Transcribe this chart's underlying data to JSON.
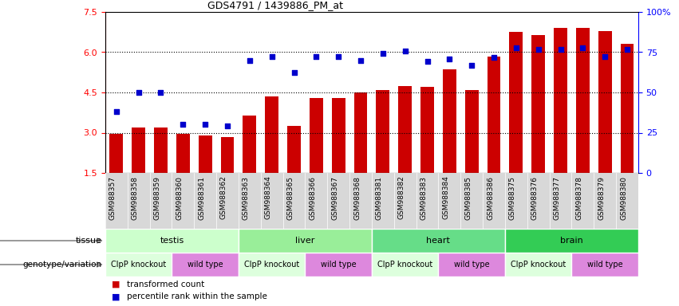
{
  "title": "GDS4791 / 1439886_PM_at",
  "samples": [
    "GSM988357",
    "GSM988358",
    "GSM988359",
    "GSM988360",
    "GSM988361",
    "GSM988362",
    "GSM988363",
    "GSM988364",
    "GSM988365",
    "GSM988366",
    "GSM988367",
    "GSM988368",
    "GSM988381",
    "GSM988382",
    "GSM988383",
    "GSM988384",
    "GSM988385",
    "GSM988386",
    "GSM988375",
    "GSM988376",
    "GSM988377",
    "GSM988378",
    "GSM988379",
    "GSM988380"
  ],
  "bar_values": [
    2.95,
    3.2,
    3.2,
    2.95,
    2.9,
    2.85,
    3.65,
    4.35,
    3.25,
    4.3,
    4.3,
    4.5,
    4.6,
    4.75,
    4.7,
    5.35,
    4.6,
    5.85,
    6.75,
    6.65,
    6.9,
    6.9,
    6.8,
    6.3
  ],
  "dot_values": [
    3.8,
    4.5,
    4.5,
    3.3,
    3.3,
    3.25,
    5.7,
    5.85,
    5.25,
    5.85,
    5.85,
    5.7,
    5.95,
    6.05,
    5.65,
    5.75,
    5.5,
    5.8,
    6.15,
    6.1,
    6.1,
    6.15,
    5.85,
    6.1
  ],
  "y_min": 1.5,
  "y_max": 7.5,
  "y_ticks": [
    1.5,
    3.0,
    4.5,
    6.0,
    7.5
  ],
  "y_right_ticks": [
    0,
    25,
    50,
    75,
    100
  ],
  "y_right_labels": [
    "0",
    "25",
    "50",
    "75",
    "100%"
  ],
  "bar_color": "#cc0000",
  "dot_color": "#0000cc",
  "tissue_groups": [
    {
      "label": "testis",
      "start": 0,
      "end": 6,
      "color": "#ccffcc"
    },
    {
      "label": "liver",
      "start": 6,
      "end": 12,
      "color": "#99ee99"
    },
    {
      "label": "heart",
      "start": 12,
      "end": 18,
      "color": "#66dd88"
    },
    {
      "label": "brain",
      "start": 18,
      "end": 24,
      "color": "#33cc55"
    }
  ],
  "genotype_groups": [
    {
      "label": "ClpP knockout",
      "start": 0,
      "end": 3,
      "color": "#ddffdd"
    },
    {
      "label": "wild type",
      "start": 3,
      "end": 6,
      "color": "#dd88dd"
    },
    {
      "label": "ClpP knockout",
      "start": 6,
      "end": 9,
      "color": "#ddffdd"
    },
    {
      "label": "wild type",
      "start": 9,
      "end": 12,
      "color": "#dd88dd"
    },
    {
      "label": "ClpP knockout",
      "start": 12,
      "end": 15,
      "color": "#ddffdd"
    },
    {
      "label": "wild type",
      "start": 15,
      "end": 18,
      "color": "#dd88dd"
    },
    {
      "label": "ClpP knockout",
      "start": 18,
      "end": 21,
      "color": "#ddffdd"
    },
    {
      "label": "wild type",
      "start": 21,
      "end": 24,
      "color": "#dd88dd"
    }
  ],
  "legend_items": [
    {
      "label": "transformed count",
      "color": "#cc0000"
    },
    {
      "label": "percentile rank within the sample",
      "color": "#0000cc"
    }
  ],
  "grid_lines": [
    3.0,
    4.5,
    6.0
  ],
  "tissue_row_label": "tissue",
  "genotype_row_label": "genotype/variation",
  "xlabels_bg": "#d8d8d8",
  "background_color": "#ffffff"
}
